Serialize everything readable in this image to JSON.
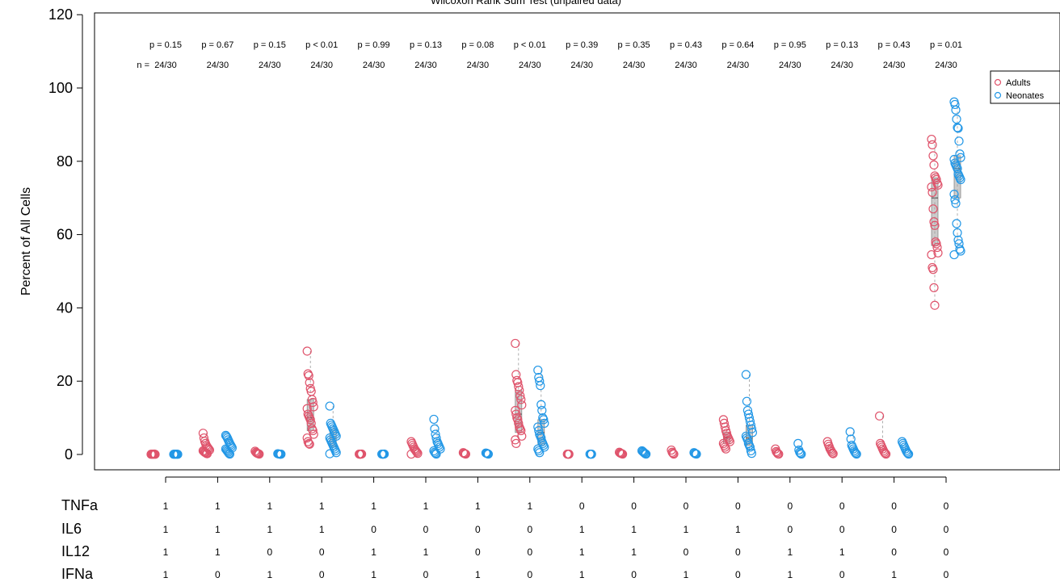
{
  "chart_data": {
    "type": "scatter",
    "title": "Wilcoxon Rank Sum Test (unpaired data)",
    "ylabel": "Percent of All Cells",
    "ylim": [
      0,
      120
    ],
    "y_ticks": [
      0,
      20,
      40,
      60,
      80,
      100,
      120
    ],
    "legend": {
      "position": "top-right",
      "entries": [
        "Adults",
        "Neonates"
      ]
    },
    "colors": {
      "Adults": "#DF536B",
      "Neonates": "#2297E6"
    },
    "n_prefix": "n =",
    "groups": [
      {
        "p": "p = 0.15",
        "n": "24/30",
        "markers": {
          "TNFa": "1",
          "IL6": "1",
          "IL12": "1",
          "IFNa": "1"
        },
        "adults": [
          0.05,
          0.1,
          0.05,
          0.08,
          0.12,
          0.04
        ],
        "neonates": [
          0.05,
          0.1,
          0.06,
          0.09,
          0.08,
          0.04
        ]
      },
      {
        "p": "p = 0.67",
        "n": "24/30",
        "markers": {
          "TNFa": "1",
          "IL6": "1",
          "IL12": "1",
          "IFNa": "0"
        },
        "adults": [
          5.8,
          4.5,
          3.6,
          3.0,
          2.5,
          2.1,
          1.8,
          1.5,
          1.2,
          1.0,
          0.8,
          0.6,
          0.5,
          0.3,
          0.2
        ],
        "neonates": [
          5.2,
          4.9,
          4.5,
          4.0,
          3.5,
          3.0,
          2.6,
          2.2,
          1.8,
          1.5,
          1.2,
          0.9,
          0.6,
          0.3,
          0.1
        ]
      },
      {
        "p": "p = 0.15",
        "n": "24/30",
        "markers": {
          "TNFa": "1",
          "IL6": "1",
          "IL12": "0",
          "IFNa": "1"
        },
        "adults": [
          0.9,
          0.6,
          0.4,
          0.3,
          0.2,
          0.1
        ],
        "neonates": [
          0.2,
          0.15,
          0.1,
          0.05,
          0.08
        ]
      },
      {
        "p": "p < 0.01",
        "n": "24/30",
        "markers": {
          "TNFa": "1",
          "IL6": "1",
          "IL12": "0",
          "IFNa": "0"
        },
        "adults": [
          28.2,
          22.0,
          21.5,
          19.6,
          18.0,
          17.2,
          15.0,
          14.2,
          13.0,
          12.5,
          11.0,
          10.5,
          10.0,
          9.5,
          8.5,
          7.0,
          6.5,
          5.5,
          4.5,
          3.5,
          3.0,
          2.8
        ],
        "neonates": [
          13.2,
          8.5,
          8.0,
          7.5,
          7.0,
          6.5,
          6.0,
          5.5,
          5.0,
          4.5,
          4.0,
          3.5,
          3.0,
          2.5,
          2.0,
          1.5,
          1.0,
          0.5,
          0.2
        ]
      },
      {
        "p": "p = 0.99",
        "n": "24/30",
        "markers": {
          "TNFa": "1",
          "IL6": "0",
          "IL12": "1",
          "IFNa": "1"
        },
        "adults": [
          0.1,
          0.05,
          0.08,
          0.12
        ],
        "neonates": [
          0.1,
          0.06,
          0.08,
          0.12
        ]
      },
      {
        "p": "p = 0.13",
        "n": "24/30",
        "markers": {
          "TNFa": "1",
          "IL6": "0",
          "IL12": "1",
          "IFNa": "0"
        },
        "adults": [
          3.5,
          3.0,
          2.5,
          2.0,
          1.5,
          1.2,
          0.9,
          0.6,
          0.3,
          0.1
        ],
        "neonates": [
          9.6,
          7.0,
          5.5,
          4.5,
          3.5,
          3.0,
          2.5,
          2.0,
          1.5,
          1.0,
          0.6,
          0.3,
          0.1
        ]
      },
      {
        "p": "p = 0.08",
        "n": "24/30",
        "markers": {
          "TNFa": "1",
          "IL6": "0",
          "IL12": "0",
          "IFNa": "1"
        },
        "adults": [
          0.5,
          0.3,
          0.2,
          0.1
        ],
        "neonates": [
          0.4,
          0.3,
          0.2,
          0.1
        ]
      },
      {
        "p": "p < 0.01",
        "n": "24/30",
        "markers": {
          "TNFa": "1",
          "IL6": "0",
          "IL12": "0",
          "IFNa": "0"
        },
        "adults": [
          30.3,
          21.8,
          20.2,
          19.6,
          18.5,
          17.5,
          16.0,
          15.0,
          13.5,
          12.0,
          11.0,
          10.0,
          9.5,
          8.5,
          7.5,
          7.0,
          6.5,
          5.0,
          4.0,
          3.0
        ],
        "neonates": [
          23.0,
          21.0,
          20.0,
          18.8,
          13.6,
          12.0,
          10.0,
          9.5,
          8.5,
          7.5,
          6.5,
          5.5,
          5.0,
          4.5,
          3.5,
          3.0,
          2.5,
          2.0,
          1.5,
          1.0,
          0.5
        ]
      },
      {
        "p": "p = 0.39",
        "n": "24/30",
        "markers": {
          "TNFa": "0",
          "IL6": "1",
          "IL12": "1",
          "IFNa": "1"
        },
        "adults": [
          0.1,
          0.05,
          0.08
        ],
        "neonates": [
          0.1,
          0.06,
          0.08
        ]
      },
      {
        "p": "p = 0.35",
        "n": "24/30",
        "markers": {
          "TNFa": "0",
          "IL6": "1",
          "IL12": "1",
          "IFNa": "0"
        },
        "adults": [
          0.6,
          0.4,
          0.3,
          0.2,
          0.1
        ],
        "neonates": [
          1.0,
          0.8,
          0.6,
          0.4,
          0.2,
          0.1
        ]
      },
      {
        "p": "p = 0.43",
        "n": "24/30",
        "markers": {
          "TNFa": "0",
          "IL6": "1",
          "IL12": "0",
          "IFNa": "1"
        },
        "adults": [
          1.2,
          0.6,
          0.3,
          0.1
        ],
        "neonates": [
          0.5,
          0.3,
          0.15,
          0.1
        ]
      },
      {
        "p": "p = 0.64",
        "n": "24/30",
        "markers": {
          "TNFa": "0",
          "IL6": "1",
          "IL12": "0",
          "IFNa": "0"
        },
        "adults": [
          9.5,
          8.5,
          7.5,
          6.5,
          5.8,
          5.0,
          4.5,
          4.0,
          3.5,
          3.0,
          2.5,
          2.0,
          1.5
        ],
        "neonates": [
          21.8,
          14.5,
          12.0,
          11.0,
          10.0,
          9.0,
          8.0,
          7.0,
          6.0,
          5.0,
          4.5,
          4.0,
          3.0,
          2.5,
          2.0,
          1.0,
          0.3
        ]
      },
      {
        "p": "p = 0.95",
        "n": "24/30",
        "markers": {
          "TNFa": "0",
          "IL6": "0",
          "IL12": "1",
          "IFNa": "1"
        },
        "adults": [
          1.5,
          0.8,
          0.5,
          0.2,
          0.1
        ],
        "neonates": [
          3.0,
          1.2,
          0.6,
          0.3,
          0.1
        ]
      },
      {
        "p": "p = 0.13",
        "n": "24/30",
        "markers": {
          "TNFa": "0",
          "IL6": "0",
          "IL12": "1",
          "IFNa": "0"
        },
        "adults": [
          3.5,
          2.8,
          2.2,
          1.6,
          1.2,
          0.8,
          0.4,
          0.2
        ],
        "neonates": [
          6.2,
          4.2,
          2.5,
          2.0,
          1.5,
          1.0,
          0.6,
          0.3,
          0.1
        ]
      },
      {
        "p": "p = 0.43",
        "n": "24/30",
        "markers": {
          "TNFa": "0",
          "IL6": "0",
          "IL12": "0",
          "IFNa": "1"
        },
        "adults": [
          10.5,
          3.0,
          2.5,
          2.0,
          1.5,
          1.0,
          0.6,
          0.3,
          0.1
        ],
        "neonates": [
          3.5,
          3.0,
          2.5,
          2.0,
          1.5,
          1.0,
          0.6,
          0.3,
          0.1
        ]
      },
      {
        "p": "p = 0.01",
        "n": "24/30",
        "markers": {
          "TNFa": "0",
          "IL6": "0",
          "IL12": "0",
          "IFNa": "0"
        },
        "adults": [
          86.0,
          84.5,
          81.5,
          79.0,
          76.0,
          75.5,
          75.0,
          74.0,
          73.5,
          73.0,
          71.5,
          67.0,
          63.5,
          62.5,
          58.0,
          57.5,
          56.5,
          55.0,
          54.5,
          51.0,
          50.5,
          45.5,
          40.7
        ],
        "neonates": [
          96.2,
          95.5,
          94.0,
          91.5,
          89.2,
          89.0,
          85.5,
          82.0,
          81.0,
          80.5,
          79.5,
          79.0,
          78.5,
          78.0,
          76.5,
          76.0,
          75.5,
          75.0,
          71.0,
          69.5,
          68.5,
          63.0,
          60.5,
          58.5,
          57.5,
          56.0,
          55.5,
          54.5
        ]
      }
    ],
    "boxes": {
      "3": {
        "adults": [
          6.5,
          10.0,
          15.0
        ],
        "neonates": [
          2.0,
          4.5,
          7.0
        ]
      },
      "7": {
        "adults": [
          6.0,
          11.0,
          17.5
        ],
        "neonates": [
          2.5,
          6.0,
          9.5
        ]
      },
      "11": {
        "adults": [
          3.0,
          4.5,
          6.0
        ],
        "neonates": [
          2.5,
          4.5,
          8.0
        ]
      },
      "15": {
        "adults": [
          57.0,
          70.0,
          75.5
        ],
        "neonates": [
          70.0,
          78.0,
          81.5
        ]
      }
    },
    "markers_order": [
      "TNFa",
      "IL6",
      "IL12",
      "IFNa"
    ]
  }
}
